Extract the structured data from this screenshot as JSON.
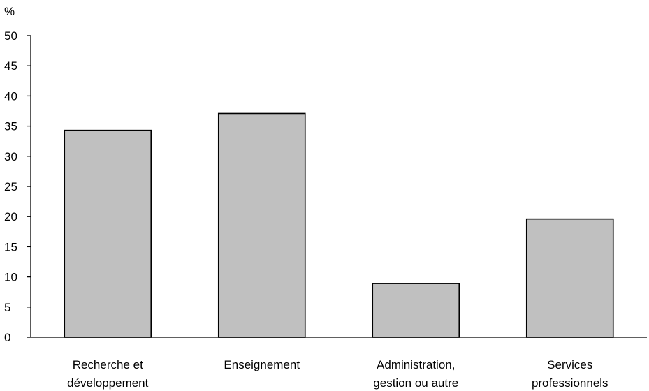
{
  "chart_data": {
    "type": "bar",
    "title": "",
    "xlabel": "",
    "ylabel": "%",
    "ylim": [
      0,
      50
    ],
    "yticks": [
      0,
      5,
      10,
      15,
      20,
      25,
      30,
      35,
      40,
      45,
      50
    ],
    "grid": false,
    "categories": [
      [
        "Recherche et",
        "développement"
      ],
      [
        "Enseignement"
      ],
      [
        "Administration,",
        "gestion ou autre"
      ],
      [
        "Services",
        "professionnels"
      ]
    ],
    "values": [
      34.3,
      37.1,
      8.9,
      19.6
    ],
    "colors": {
      "bar_fill": "#c0c0c0",
      "bar_stroke": "#000000",
      "axis": "#000000"
    }
  }
}
